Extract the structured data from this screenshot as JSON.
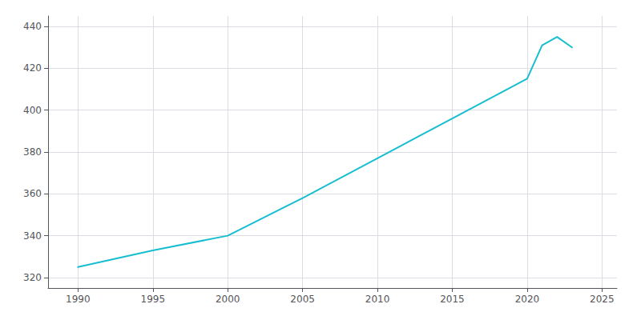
{
  "chart_data": {
    "type": "line",
    "x": [
      1990,
      1995,
      2000,
      2005,
      2010,
      2015,
      2020,
      2021,
      2022,
      2023
    ],
    "values": [
      325,
      333,
      340,
      358,
      377,
      396,
      415,
      431,
      435,
      430
    ],
    "color": "#17becf",
    "xlim": [
      1988,
      2026
    ],
    "ylim": [
      315,
      445
    ],
    "xticks": [
      1990,
      1995,
      2000,
      2005,
      2010,
      2015,
      2020,
      2025
    ],
    "yticks": [
      320,
      340,
      360,
      380,
      400,
      420,
      440
    ],
    "grid": true
  }
}
